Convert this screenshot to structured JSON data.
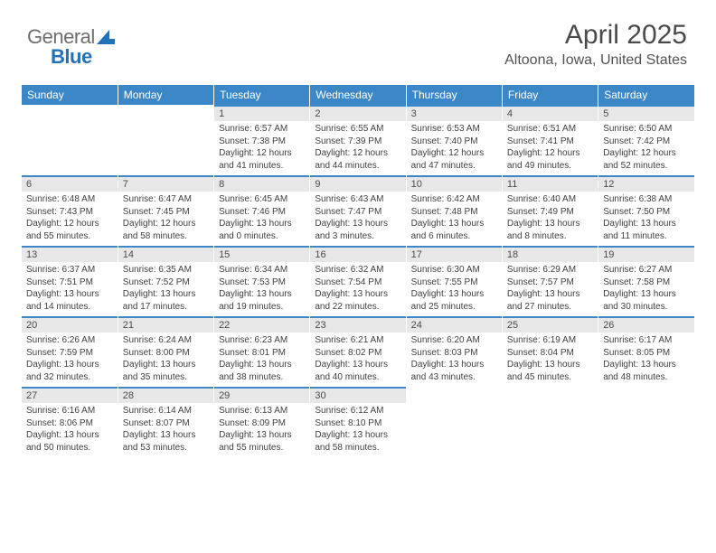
{
  "logo": {
    "part1": "General",
    "part2": "Blue"
  },
  "title": "April 2025",
  "subtitle": "Altoona, Iowa, United States",
  "colors": {
    "header_bg": "#3b87c8",
    "header_text": "#ffffff",
    "daynum_bg": "#e7e7e7",
    "daynum_border": "#3b87c8",
    "page_bg": "#ffffff",
    "text": "#3a3a3a",
    "logo_gray": "#6e6e6e",
    "logo_blue": "#2372b9"
  },
  "daysOfWeek": [
    "Sunday",
    "Monday",
    "Tuesday",
    "Wednesday",
    "Thursday",
    "Friday",
    "Saturday"
  ],
  "weeks": [
    [
      null,
      null,
      {
        "n": "1",
        "sr": "6:57 AM",
        "ss": "7:38 PM",
        "dl": "12 hours and 41 minutes."
      },
      {
        "n": "2",
        "sr": "6:55 AM",
        "ss": "7:39 PM",
        "dl": "12 hours and 44 minutes."
      },
      {
        "n": "3",
        "sr": "6:53 AM",
        "ss": "7:40 PM",
        "dl": "12 hours and 47 minutes."
      },
      {
        "n": "4",
        "sr": "6:51 AM",
        "ss": "7:41 PM",
        "dl": "12 hours and 49 minutes."
      },
      {
        "n": "5",
        "sr": "6:50 AM",
        "ss": "7:42 PM",
        "dl": "12 hours and 52 minutes."
      }
    ],
    [
      {
        "n": "6",
        "sr": "6:48 AM",
        "ss": "7:43 PM",
        "dl": "12 hours and 55 minutes."
      },
      {
        "n": "7",
        "sr": "6:47 AM",
        "ss": "7:45 PM",
        "dl": "12 hours and 58 minutes."
      },
      {
        "n": "8",
        "sr": "6:45 AM",
        "ss": "7:46 PM",
        "dl": "13 hours and 0 minutes."
      },
      {
        "n": "9",
        "sr": "6:43 AM",
        "ss": "7:47 PM",
        "dl": "13 hours and 3 minutes."
      },
      {
        "n": "10",
        "sr": "6:42 AM",
        "ss": "7:48 PM",
        "dl": "13 hours and 6 minutes."
      },
      {
        "n": "11",
        "sr": "6:40 AM",
        "ss": "7:49 PM",
        "dl": "13 hours and 8 minutes."
      },
      {
        "n": "12",
        "sr": "6:38 AM",
        "ss": "7:50 PM",
        "dl": "13 hours and 11 minutes."
      }
    ],
    [
      {
        "n": "13",
        "sr": "6:37 AM",
        "ss": "7:51 PM",
        "dl": "13 hours and 14 minutes."
      },
      {
        "n": "14",
        "sr": "6:35 AM",
        "ss": "7:52 PM",
        "dl": "13 hours and 17 minutes."
      },
      {
        "n": "15",
        "sr": "6:34 AM",
        "ss": "7:53 PM",
        "dl": "13 hours and 19 minutes."
      },
      {
        "n": "16",
        "sr": "6:32 AM",
        "ss": "7:54 PM",
        "dl": "13 hours and 22 minutes."
      },
      {
        "n": "17",
        "sr": "6:30 AM",
        "ss": "7:55 PM",
        "dl": "13 hours and 25 minutes."
      },
      {
        "n": "18",
        "sr": "6:29 AM",
        "ss": "7:57 PM",
        "dl": "13 hours and 27 minutes."
      },
      {
        "n": "19",
        "sr": "6:27 AM",
        "ss": "7:58 PM",
        "dl": "13 hours and 30 minutes."
      }
    ],
    [
      {
        "n": "20",
        "sr": "6:26 AM",
        "ss": "7:59 PM",
        "dl": "13 hours and 32 minutes."
      },
      {
        "n": "21",
        "sr": "6:24 AM",
        "ss": "8:00 PM",
        "dl": "13 hours and 35 minutes."
      },
      {
        "n": "22",
        "sr": "6:23 AM",
        "ss": "8:01 PM",
        "dl": "13 hours and 38 minutes."
      },
      {
        "n": "23",
        "sr": "6:21 AM",
        "ss": "8:02 PM",
        "dl": "13 hours and 40 minutes."
      },
      {
        "n": "24",
        "sr": "6:20 AM",
        "ss": "8:03 PM",
        "dl": "13 hours and 43 minutes."
      },
      {
        "n": "25",
        "sr": "6:19 AM",
        "ss": "8:04 PM",
        "dl": "13 hours and 45 minutes."
      },
      {
        "n": "26",
        "sr": "6:17 AM",
        "ss": "8:05 PM",
        "dl": "13 hours and 48 minutes."
      }
    ],
    [
      {
        "n": "27",
        "sr": "6:16 AM",
        "ss": "8:06 PM",
        "dl": "13 hours and 50 minutes."
      },
      {
        "n": "28",
        "sr": "6:14 AM",
        "ss": "8:07 PM",
        "dl": "13 hours and 53 minutes."
      },
      {
        "n": "29",
        "sr": "6:13 AM",
        "ss": "8:09 PM",
        "dl": "13 hours and 55 minutes."
      },
      {
        "n": "30",
        "sr": "6:12 AM",
        "ss": "8:10 PM",
        "dl": "13 hours and 58 minutes."
      },
      null,
      null,
      null
    ]
  ],
  "labels": {
    "sunrise": "Sunrise:",
    "sunset": "Sunset:",
    "daylight": "Daylight:"
  }
}
